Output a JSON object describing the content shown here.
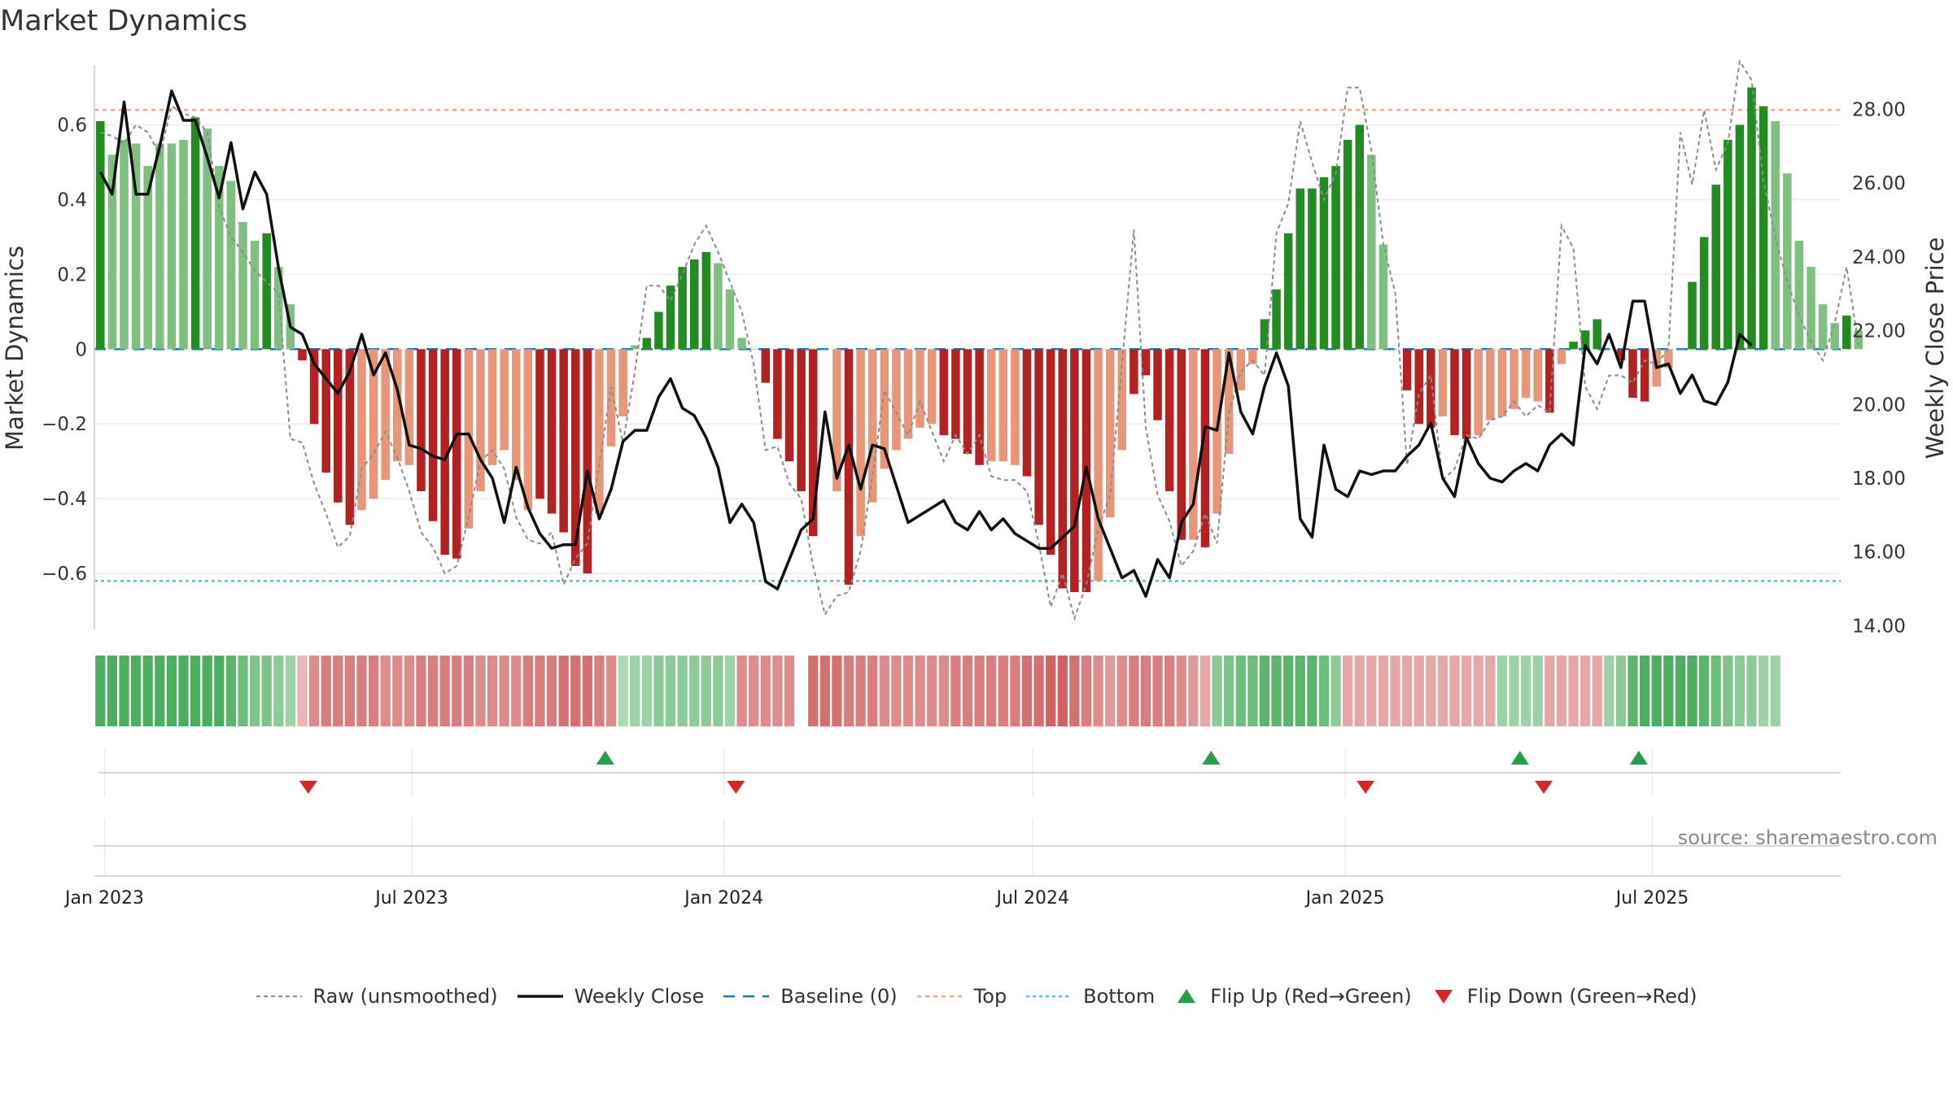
{
  "title": "Market Dynamics",
  "source": "source: sharemaestro.com",
  "colors": {
    "strong_green": "#228b22",
    "light_green": "#7fbf7f",
    "strong_red": "#b22222",
    "light_red": "#e8967a",
    "close_line": "#111111",
    "raw_line": "#8c8c8c",
    "baseline": "#1f77b4",
    "top": "#f4a582",
    "bottom": "#5bc0de",
    "flip_up": "#22a04a",
    "flip_down": "#d62728"
  },
  "legend": [
    {
      "label": "Raw (unsmoothed)",
      "key": "raw",
      "icon": "dotted-line-icon"
    },
    {
      "label": "Weekly Close",
      "key": "close",
      "icon": "solid-line-icon"
    },
    {
      "label": "Baseline (0)",
      "key": "baseline",
      "icon": "dashed-line-icon"
    },
    {
      "label": "Top",
      "key": "top",
      "icon": "dotted-line-icon"
    },
    {
      "label": "Bottom",
      "key": "bottom",
      "icon": "dotted-line-icon"
    },
    {
      "label": "Flip Up (Red→Green)",
      "key": "flip_up",
      "icon": "triangle-up-icon"
    },
    {
      "label": "Flip Down (Green→Red)",
      "key": "flip_down",
      "icon": "triangle-down-icon"
    }
  ],
  "chart_data": {
    "type": "bar",
    "title": "Market Dynamics",
    "ylabel_left": "Market Dynamics",
    "ylabel_right": "Weekly Close Price",
    "y_left_ticks": [
      "0.6",
      "0.4",
      "0.2",
      "0",
      "−0.2",
      "−0.4",
      "−0.6"
    ],
    "y_left_tick_values": [
      0.6,
      0.4,
      0.2,
      0,
      -0.2,
      -0.4,
      -0.6
    ],
    "y_right_ticks": [
      "28.00",
      "26.00",
      "24.00",
      "22.00",
      "20.00",
      "18.00",
      "16.00",
      "14.00"
    ],
    "y_right_tick_values": [
      28,
      26,
      24,
      22,
      20,
      18,
      16,
      14
    ],
    "ylim_left": [
      -0.75,
      0.76
    ],
    "ylim_right": [
      13.9,
      29.2
    ],
    "x_tick_labels": [
      "Jan 2023",
      "Jul 2023",
      "Jan 2024",
      "Jul 2024",
      "Jan 2025",
      "Jul 2025"
    ],
    "x_tick_dates": [
      "2023-01-01",
      "2023-07-01",
      "2024-01-01",
      "2024-07-01",
      "2025-01-01",
      "2025-07-01"
    ],
    "xlim": [
      "2022-12-26",
      "2025-10-20"
    ],
    "grid": true,
    "legend_position": "bottom-center",
    "reference_lines": {
      "baseline": 0,
      "top": 0.64,
      "bottom": -0.62
    },
    "series": [
      {
        "name": "Market Dynamics",
        "type": "bar",
        "start_date": "2022-12-26",
        "week_step": 1,
        "values": [
          0.61,
          0.52,
          0.56,
          0.55,
          0.49,
          0.55,
          0.55,
          0.56,
          0.62,
          0.59,
          0.49,
          0.45,
          0.34,
          0.29,
          0.31,
          0.22,
          0.12,
          -0.03,
          -0.2,
          -0.33,
          -0.41,
          -0.47,
          -0.43,
          -0.4,
          -0.35,
          -0.3,
          -0.31,
          -0.38,
          -0.46,
          -0.55,
          -0.56,
          -0.48,
          -0.38,
          -0.31,
          -0.27,
          -0.35,
          -0.43,
          -0.4,
          -0.44,
          -0.49,
          -0.58,
          -0.6,
          -0.44,
          -0.26,
          -0.18,
          0.01,
          0.03,
          0.1,
          0.17,
          0.22,
          0.24,
          0.26,
          0.23,
          0.16,
          0.03,
          0.0,
          -0.09,
          -0.24,
          -0.3,
          -0.38,
          -0.5,
          -0.0,
          -0.38,
          -0.63,
          -0.5,
          -0.41,
          -0.32,
          -0.27,
          -0.24,
          -0.21,
          -0.2,
          -0.23,
          -0.24,
          -0.28,
          -0.31,
          -0.3,
          -0.3,
          -0.31,
          -0.34,
          -0.47,
          -0.55,
          -0.64,
          -0.65,
          -0.65,
          -0.62,
          -0.45,
          -0.27,
          -0.12,
          -0.07,
          -0.19,
          -0.38,
          -0.51,
          -0.51,
          -0.53,
          -0.44,
          -0.28,
          -0.11,
          -0.04,
          0.08,
          0.16,
          0.31,
          0.43,
          0.43,
          0.46,
          0.49,
          0.56,
          0.6,
          0.52,
          0.28,
          0.0,
          -0.11,
          -0.2,
          -0.21,
          -0.18,
          -0.23,
          -0.24,
          -0.23,
          -0.19,
          -0.18,
          -0.16,
          -0.13,
          -0.14,
          -0.17,
          -0.04,
          0.02,
          0.05,
          0.08,
          0.0,
          -0.03,
          -0.13,
          -0.14,
          -0.1,
          -0.05,
          0.0,
          0.18,
          0.3,
          0.44,
          0.56,
          0.6,
          0.7,
          0.65,
          0.61,
          0.47,
          0.29,
          0.22,
          0.12,
          0.07,
          0.09,
          0.05
        ],
        "strength": [
          1,
          0,
          0,
          0,
          0,
          0,
          0,
          0,
          1,
          0,
          0,
          0,
          0,
          0,
          1,
          0,
          0,
          1,
          1,
          1,
          1,
          1,
          0,
          0,
          0,
          0,
          0,
          1,
          1,
          1,
          1,
          0,
          0,
          0,
          0,
          0,
          0,
          1,
          1,
          1,
          1,
          1,
          0,
          0,
          0,
          0,
          1,
          1,
          1,
          1,
          1,
          1,
          0,
          0,
          0,
          0,
          1,
          1,
          1,
          1,
          1,
          0,
          0,
          1,
          0,
          0,
          0,
          0,
          0,
          0,
          0,
          1,
          1,
          1,
          1,
          0,
          0,
          0,
          1,
          1,
          1,
          1,
          1,
          1,
          0,
          0,
          0,
          1,
          1,
          1,
          1,
          1,
          0,
          1,
          0,
          0,
          0,
          0,
          1,
          1,
          1,
          1,
          1,
          1,
          1,
          1,
          1,
          0,
          0,
          0,
          1,
          1,
          1,
          0,
          1,
          1,
          0,
          0,
          0,
          0,
          0,
          0,
          1,
          0,
          1,
          1,
          1,
          0,
          1,
          1,
          1,
          0,
          0,
          0,
          1,
          1,
          1,
          1,
          1,
          1,
          1,
          0,
          0,
          0,
          0,
          0,
          0,
          1,
          0
        ]
      },
      {
        "name": "Raw (unsmoothed)",
        "type": "line",
        "values": [
          0.58,
          0.57,
          0.55,
          0.6,
          0.58,
          0.52,
          0.65,
          0.63,
          0.62,
          0.58,
          0.38,
          0.3,
          0.26,
          0.21,
          0.18,
          0.15,
          -0.24,
          -0.25,
          -0.36,
          -0.44,
          -0.53,
          -0.5,
          -0.32,
          -0.28,
          -0.22,
          -0.29,
          -0.38,
          -0.49,
          -0.53,
          -0.6,
          -0.58,
          -0.45,
          -0.3,
          -0.27,
          -0.32,
          -0.45,
          -0.51,
          -0.52,
          -0.49,
          -0.63,
          -0.56,
          -0.52,
          -0.31,
          -0.1,
          -0.25,
          -0.06,
          0.17,
          0.17,
          0.13,
          0.2,
          0.28,
          0.33,
          0.26,
          0.18,
          0.1,
          -0.04,
          -0.27,
          -0.26,
          -0.36,
          -0.4,
          -0.58,
          -0.71,
          -0.66,
          -0.65,
          -0.54,
          -0.34,
          -0.11,
          -0.17,
          -0.23,
          -0.14,
          -0.22,
          -0.3,
          -0.23,
          -0.28,
          -0.23,
          -0.34,
          -0.35,
          -0.35,
          -0.38,
          -0.52,
          -0.69,
          -0.6,
          -0.72,
          -0.63,
          -0.48,
          -0.39,
          -0.04,
          0.32,
          -0.21,
          -0.39,
          -0.46,
          -0.58,
          -0.54,
          -0.44,
          -0.52,
          -0.17,
          -0.06,
          -0.03,
          -0.07,
          0.31,
          0.39,
          0.61,
          0.5,
          0.4,
          0.47,
          0.7,
          0.7,
          0.53,
          0.28,
          0.15,
          -0.31,
          -0.12,
          -0.07,
          -0.35,
          -0.32,
          -0.23,
          -0.24,
          -0.19,
          -0.18,
          -0.14,
          -0.18,
          -0.15,
          -0.17,
          0.33,
          0.27,
          -0.1,
          -0.16,
          -0.07,
          -0.07,
          -0.09,
          -0.03,
          -0.04,
          0.0,
          0.58,
          0.44,
          0.64,
          0.48,
          0.55,
          0.77,
          0.72,
          0.45,
          0.3,
          0.18,
          0.09,
          0.02,
          -0.03,
          0.07,
          0.22,
          0.01
        ]
      },
      {
        "name": "Weekly Close",
        "type": "line",
        "axis": "right",
        "values": [
          26.3,
          25.7,
          28.2,
          25.7,
          25.7,
          27.0,
          28.5,
          27.7,
          27.7,
          26.7,
          25.6,
          27.1,
          25.3,
          26.3,
          25.7,
          23.7,
          22.1,
          21.9,
          21.1,
          20.7,
          20.3,
          20.9,
          21.9,
          20.8,
          21.4,
          20.4,
          18.9,
          18.8,
          18.6,
          18.5,
          19.2,
          19.2,
          18.5,
          18.0,
          16.8,
          18.3,
          17.2,
          16.5,
          16.1,
          16.2,
          16.2,
          18.2,
          16.9,
          17.7,
          19.0,
          19.3,
          19.3,
          20.2,
          20.7,
          19.9,
          19.7,
          19.1,
          18.3,
          16.8,
          17.3,
          16.8,
          15.2,
          15.0,
          15.8,
          16.6,
          16.9,
          19.8,
          18.0,
          18.9,
          17.7,
          18.9,
          18.8,
          17.8,
          16.8,
          17.0,
          17.2,
          17.4,
          16.8,
          16.6,
          17.1,
          16.6,
          16.9,
          16.5,
          16.3,
          16.1,
          16.1,
          16.4,
          16.7,
          18.3,
          16.9,
          16.1,
          15.3,
          15.5,
          14.8,
          15.8,
          15.3,
          16.8,
          17.3,
          19.4,
          19.3,
          21.4,
          19.8,
          19.2,
          20.5,
          21.4,
          20.5,
          16.9,
          16.4,
          18.9,
          17.7,
          17.5,
          18.2,
          18.1,
          18.2,
          18.2,
          18.6,
          18.9,
          19.5,
          18.0,
          17.5,
          19.1,
          18.4,
          18.0,
          17.9,
          18.2,
          18.4,
          18.2,
          18.9,
          19.2,
          18.9,
          21.6,
          21.1,
          21.9,
          21.0,
          22.8,
          22.8,
          21.0,
          21.1,
          20.3,
          20.8,
          20.1,
          20.0,
          20.6,
          21.9,
          21.6
        ]
      }
    ],
    "state_strip": {
      "colors_in_order": [
        "green",
        "green",
        "green",
        "green",
        "green",
        "green",
        "green",
        "green",
        "green",
        "green",
        "green",
        "green",
        "green",
        "green",
        "green",
        "green",
        "green",
        "red",
        "red",
        "red",
        "red",
        "red",
        "red",
        "red",
        "red",
        "red",
        "red",
        "red",
        "red",
        "red",
        "red",
        "red",
        "red",
        "red",
        "red",
        "red",
        "red",
        "red",
        "red",
        "red",
        "red",
        "red",
        "red",
        "red",
        "green",
        "green",
        "green",
        "green",
        "green",
        "green",
        "green",
        "green",
        "green",
        "green",
        "red",
        "red",
        "red",
        "red",
        "red",
        "gap",
        "red",
        "red",
        "red",
        "red",
        "red",
        "red",
        "red",
        "red",
        "red",
        "red",
        "red",
        "red",
        "red",
        "red",
        "red",
        "red",
        "red",
        "red",
        "red",
        "red",
        "red",
        "red",
        "red",
        "red",
        "red",
        "red",
        "red",
        "red",
        "red",
        "red",
        "red",
        "red",
        "red",
        "red",
        "green",
        "green",
        "green",
        "green",
        "green",
        "green",
        "green",
        "green",
        "green",
        "green",
        "green",
        "red",
        "red",
        "red",
        "red",
        "red",
        "red",
        "red",
        "red",
        "red",
        "red",
        "red",
        "red",
        "red",
        "green",
        "green",
        "green",
        "green",
        "red",
        "red",
        "red",
        "red",
        "red",
        "green",
        "green",
        "green",
        "green",
        "green",
        "green",
        "green",
        "green",
        "green",
        "green",
        "green",
        "green",
        "green",
        "green",
        "green"
      ],
      "intensity": [
        0.8,
        0.8,
        0.8,
        0.8,
        0.8,
        0.8,
        0.8,
        0.8,
        0.8,
        0.8,
        0.8,
        0.7,
        0.6,
        0.5,
        0.5,
        0.4,
        0.3,
        0.2,
        0.5,
        0.6,
        0.6,
        0.6,
        0.6,
        0.6,
        0.5,
        0.5,
        0.5,
        0.6,
        0.6,
        0.6,
        0.6,
        0.6,
        0.5,
        0.5,
        0.5,
        0.5,
        0.6,
        0.6,
        0.6,
        0.7,
        0.7,
        0.7,
        0.6,
        0.5,
        0.2,
        0.3,
        0.3,
        0.4,
        0.4,
        0.4,
        0.4,
        0.4,
        0.4,
        0.3,
        0.5,
        0.5,
        0.5,
        0.5,
        0.5,
        0,
        0.7,
        0.7,
        0.7,
        0.6,
        0.6,
        0.6,
        0.5,
        0.5,
        0.5,
        0.5,
        0.5,
        0.5,
        0.6,
        0.6,
        0.6,
        0.6,
        0.6,
        0.6,
        0.7,
        0.7,
        0.8,
        0.8,
        0.7,
        0.6,
        0.5,
        0.4,
        0.5,
        0.6,
        0.6,
        0.6,
        0.6,
        0.5,
        0.4,
        0.3,
        0.4,
        0.5,
        0.6,
        0.6,
        0.7,
        0.7,
        0.7,
        0.7,
        0.7,
        0.6,
        0.4,
        0.3,
        0.3,
        0.3,
        0.3,
        0.3,
        0.3,
        0.3,
        0.3,
        0.3,
        0.3,
        0.3,
        0.3,
        0.3,
        0.3,
        0.3,
        0.3,
        0.3,
        0.3,
        0.3,
        0.3,
        0.3,
        0.3,
        0.3,
        0.4,
        0.7,
        0.8,
        0.8,
        0.8,
        0.8,
        0.8,
        0.7,
        0.6,
        0.5,
        0.4,
        0.4,
        0.3,
        0.3,
        0.3,
        0.3,
        0.2
      ]
    },
    "flip_events": [
      {
        "type": "down",
        "date": "2023-05-01"
      },
      {
        "type": "up",
        "date": "2023-10-23"
      },
      {
        "type": "down",
        "date": "2024-01-08"
      },
      {
        "type": "up",
        "date": "2024-10-14"
      },
      {
        "type": "down",
        "date": "2025-01-13"
      },
      {
        "type": "up",
        "date": "2025-04-14"
      },
      {
        "type": "down",
        "date": "2025-04-28"
      },
      {
        "type": "up",
        "date": "2025-06-23"
      }
    ]
  }
}
